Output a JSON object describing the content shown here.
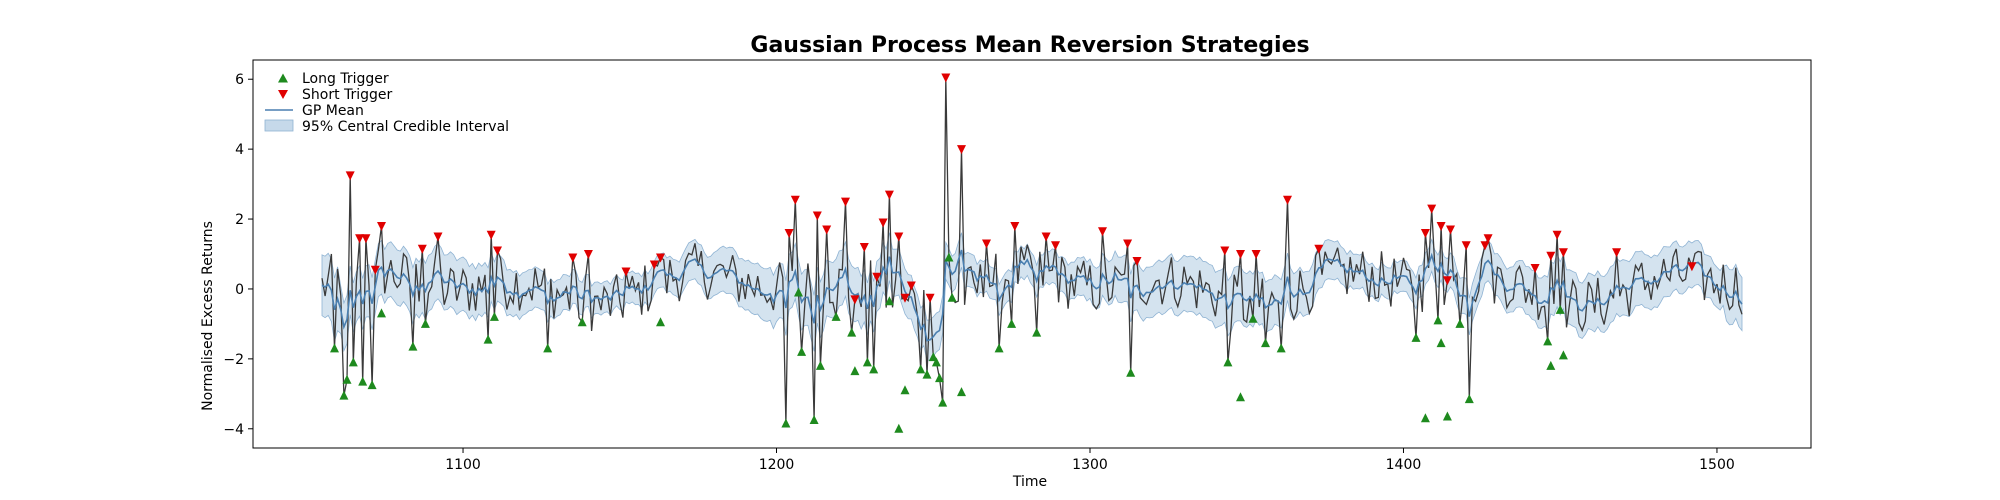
{
  "chart_data": {
    "type": "line",
    "title": "Gaussian Process Mean Reversion Strategies",
    "xlabel": "Time",
    "ylabel": "Normalised Excess Returns",
    "xlim": [
      1033,
      1530
    ],
    "ylim": [
      -4.55,
      6.55
    ],
    "xticks": [
      1100,
      1200,
      1300,
      1400,
      1500
    ],
    "yticks": [
      -4,
      -2,
      0,
      2,
      4,
      6
    ],
    "legend_position": "top-left",
    "legend": {
      "long": "Long Trigger",
      "short": "Short Trigger",
      "mean": "GP Mean",
      "band": "95% Central Credible Interval"
    },
    "colors": {
      "returns": "#3a3a3a",
      "mean": "#4a7fb0",
      "band_fill": "#c6d9ea",
      "band_edge": "#8fb3d3",
      "long": "#1e8a1e",
      "short": "#e00000"
    },
    "time_range": [
      1055,
      1508
    ],
    "long_triggers": [
      [
        1059,
        -1.7
      ],
      [
        1062,
        -3.05
      ],
      [
        1063,
        -2.6
      ],
      [
        1065,
        -2.1
      ],
      [
        1068,
        -2.65
      ],
      [
        1071,
        -2.75
      ],
      [
        1074,
        -0.7
      ],
      [
        1084,
        -1.65
      ],
      [
        1088,
        -1.0
      ],
      [
        1108,
        -1.45
      ],
      [
        1110,
        -0.8
      ],
      [
        1127,
        -1.7
      ],
      [
        1138,
        -0.95
      ],
      [
        1163,
        -0.95
      ],
      [
        1203,
        -3.85
      ],
      [
        1207,
        -0.1
      ],
      [
        1208,
        -1.8
      ],
      [
        1212,
        -3.75
      ],
      [
        1214,
        -2.2
      ],
      [
        1219,
        -0.8
      ],
      [
        1224,
        -1.25
      ],
      [
        1225,
        -2.35
      ],
      [
        1229,
        -2.1
      ],
      [
        1231,
        -2.3
      ],
      [
        1236,
        -0.35
      ],
      [
        1239,
        -4.0
      ],
      [
        1241,
        -2.9
      ],
      [
        1246,
        -2.3
      ],
      [
        1248,
        -2.45
      ],
      [
        1250,
        -1.95
      ],
      [
        1251,
        -2.1
      ],
      [
        1252,
        -2.55
      ],
      [
        1253,
        -3.25
      ],
      [
        1255,
        0.9
      ],
      [
        1256,
        -0.25
      ],
      [
        1259,
        -2.95
      ],
      [
        1271,
        -1.7
      ],
      [
        1275,
        -1.0
      ],
      [
        1283,
        -1.25
      ],
      [
        1313,
        -2.4
      ],
      [
        1344,
        -2.1
      ],
      [
        1348,
        -3.1
      ],
      [
        1352,
        -0.85
      ],
      [
        1356,
        -1.55
      ],
      [
        1361,
        -1.7
      ],
      [
        1404,
        -1.4
      ],
      [
        1407,
        -3.7
      ],
      [
        1411,
        -0.9
      ],
      [
        1412,
        -1.55
      ],
      [
        1414,
        -3.65
      ],
      [
        1418,
        -1.0
      ],
      [
        1421,
        -3.15
      ],
      [
        1446,
        -1.5
      ],
      [
        1447,
        -2.2
      ],
      [
        1450,
        -0.6
      ],
      [
        1451,
        -1.9
      ]
    ],
    "short_triggers": [
      [
        1064,
        3.25
      ],
      [
        1067,
        1.45
      ],
      [
        1069,
        1.45
      ],
      [
        1072,
        0.55
      ],
      [
        1074,
        1.8
      ],
      [
        1087,
        1.15
      ],
      [
        1092,
        1.5
      ],
      [
        1109,
        1.55
      ],
      [
        1111,
        1.1
      ],
      [
        1135,
        0.9
      ],
      [
        1140,
        1.0
      ],
      [
        1152,
        0.5
      ],
      [
        1161,
        0.7
      ],
      [
        1163,
        0.9
      ],
      [
        1204,
        1.6
      ],
      [
        1206,
        2.55
      ],
      [
        1213,
        2.1
      ],
      [
        1216,
        1.7
      ],
      [
        1222,
        2.5
      ],
      [
        1225,
        -0.3
      ],
      [
        1228,
        1.2
      ],
      [
        1232,
        0.35
      ],
      [
        1234,
        1.9
      ],
      [
        1236,
        2.7
      ],
      [
        1239,
        1.5
      ],
      [
        1241,
        -0.25
      ],
      [
        1243,
        0.1
      ],
      [
        1249,
        -0.25
      ],
      [
        1254,
        6.05
      ],
      [
        1259,
        4.0
      ],
      [
        1267,
        1.3
      ],
      [
        1276,
        1.8
      ],
      [
        1286,
        1.5
      ],
      [
        1289,
        1.25
      ],
      [
        1304,
        1.65
      ],
      [
        1312,
        1.3
      ],
      [
        1315,
        0.8
      ],
      [
        1343,
        1.1
      ],
      [
        1348,
        1.0
      ],
      [
        1353,
        1.0
      ],
      [
        1363,
        2.55
      ],
      [
        1373,
        1.15
      ],
      [
        1407,
        1.6
      ],
      [
        1409,
        2.3
      ],
      [
        1412,
        1.8
      ],
      [
        1414,
        0.25
      ],
      [
        1415,
        1.7
      ],
      [
        1420,
        1.25
      ],
      [
        1426,
        1.25
      ],
      [
        1427,
        1.45
      ],
      [
        1442,
        0.6
      ],
      [
        1447,
        0.95
      ],
      [
        1449,
        1.55
      ],
      [
        1451,
        1.05
      ],
      [
        1468,
        1.05
      ],
      [
        1492,
        0.65
      ]
    ]
  }
}
